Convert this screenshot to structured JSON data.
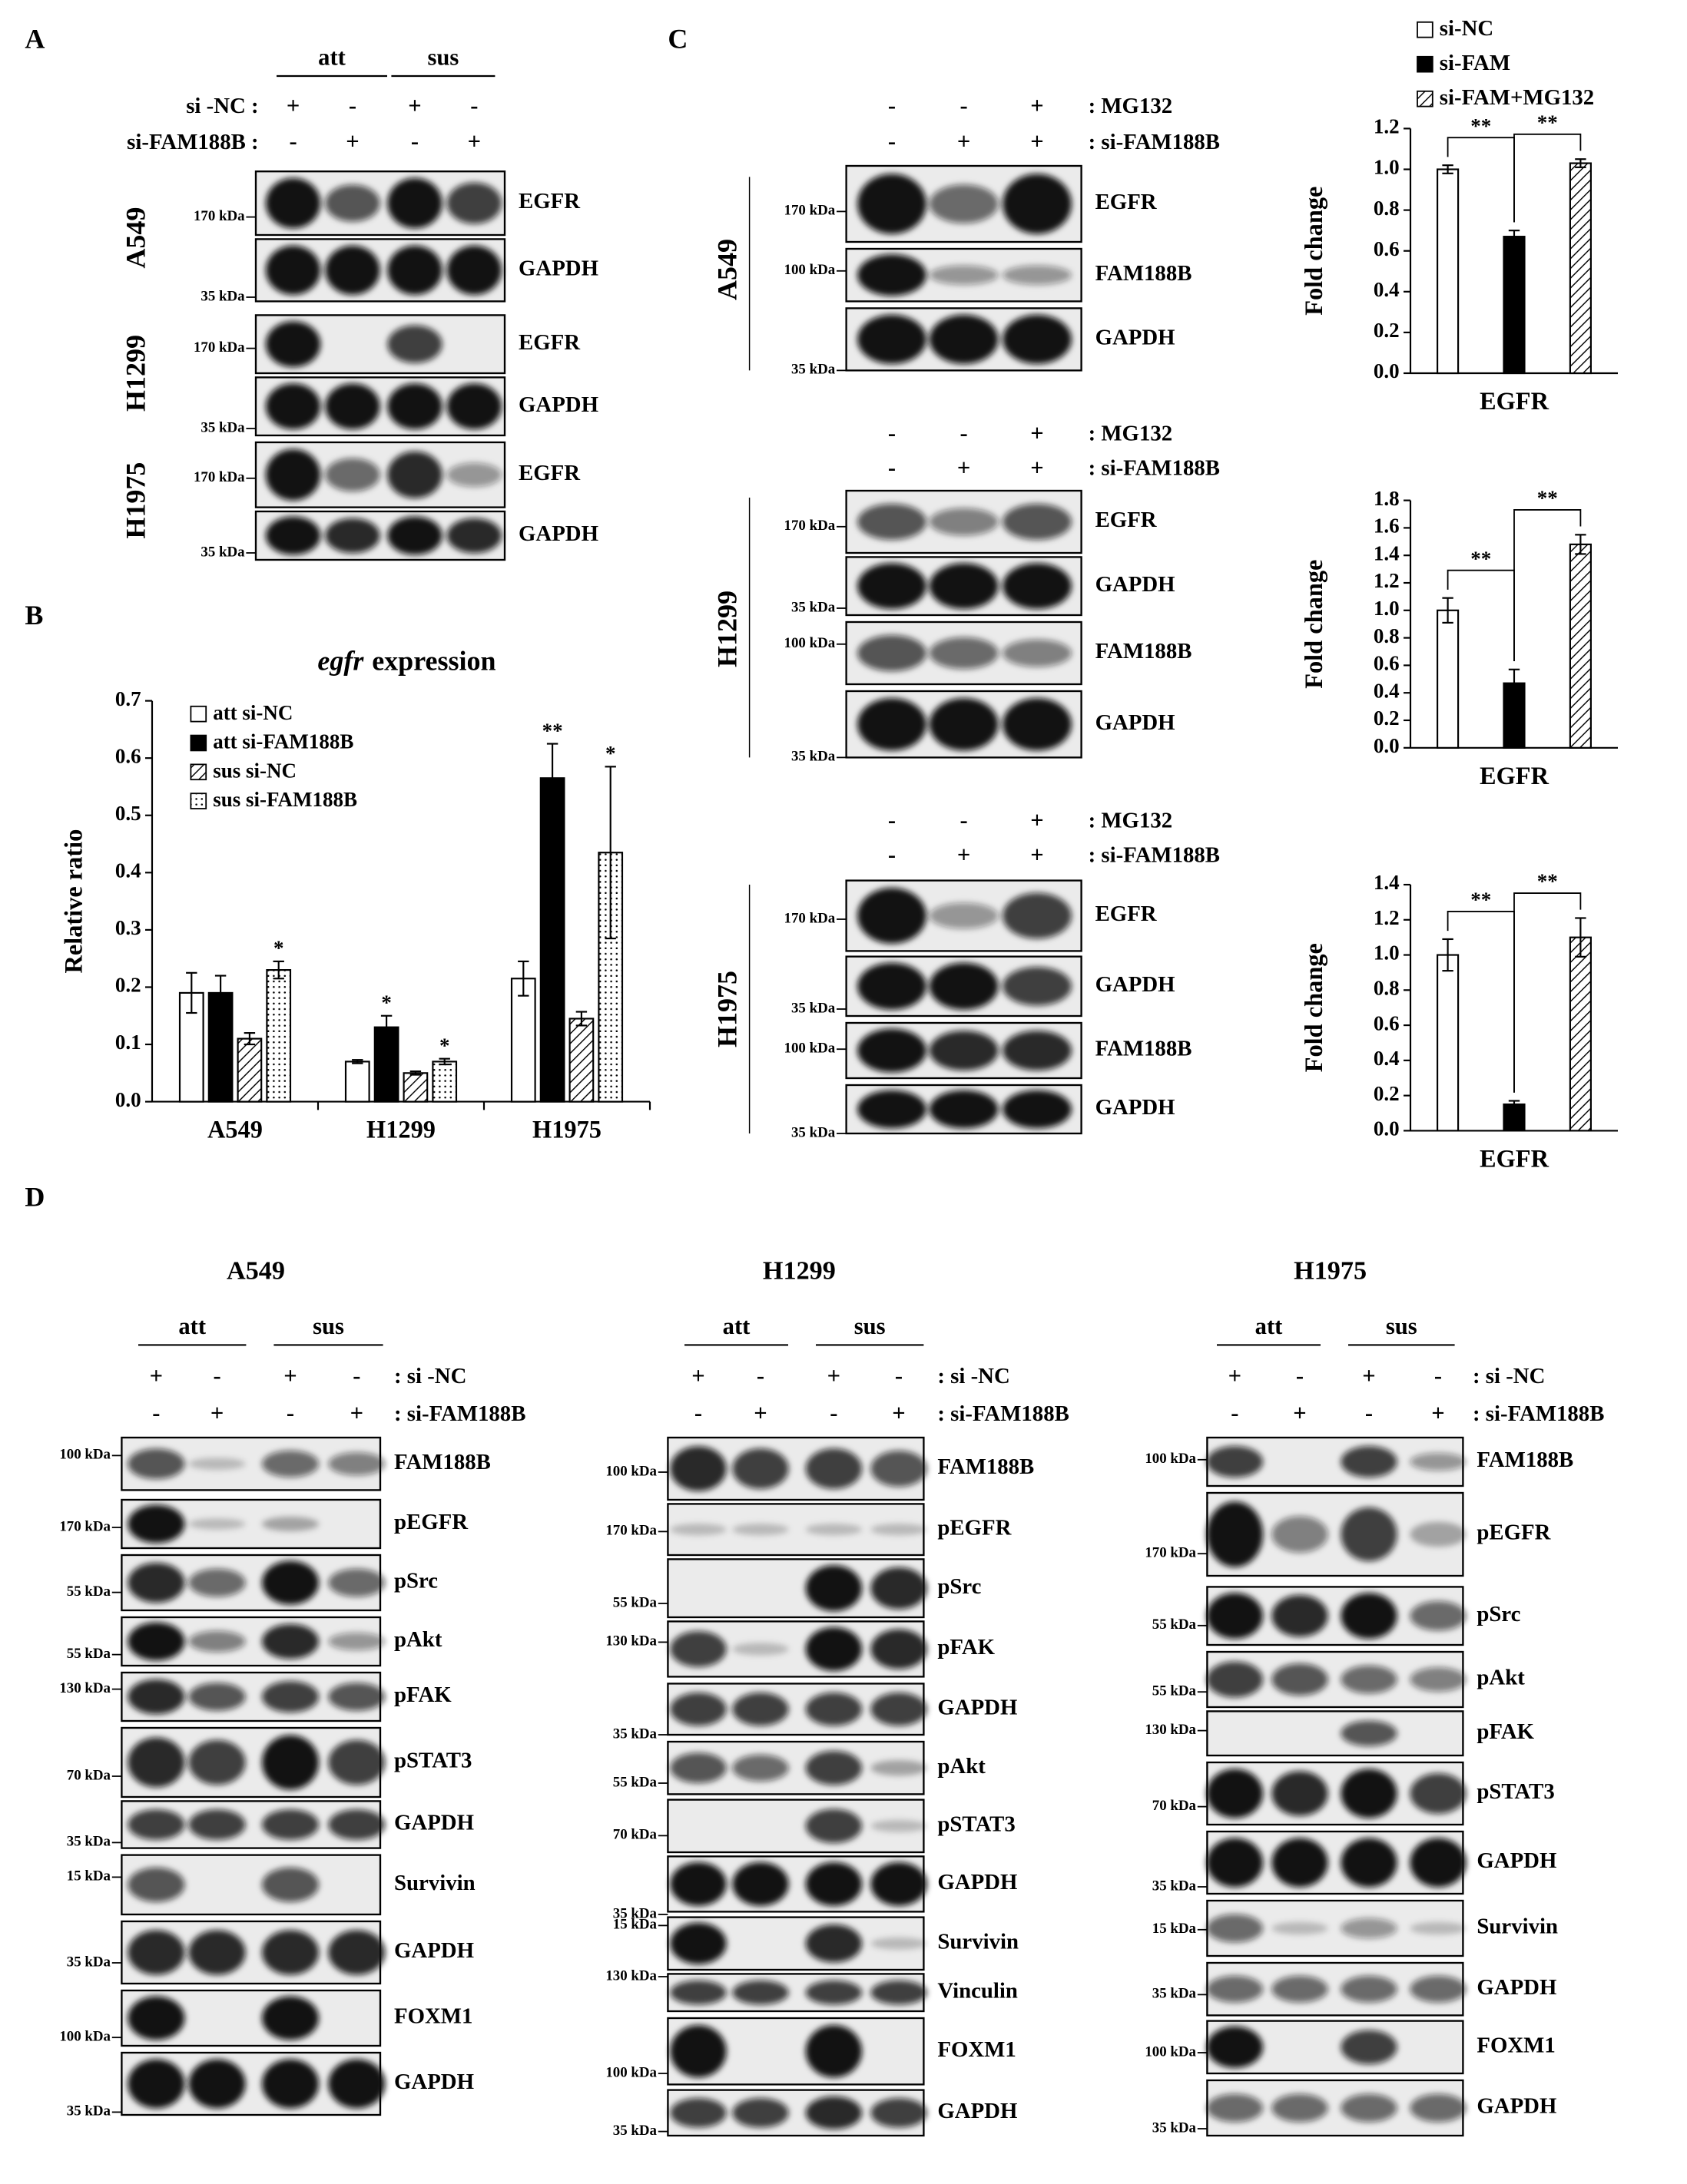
{
  "panel_labels": [
    "A",
    "B",
    "C",
    "D"
  ],
  "panel_a": {
    "groups": [
      "att",
      "sus"
    ],
    "conditions": [
      {
        "label": "si -NC :",
        "signs": [
          "+",
          "-",
          "+",
          "-"
        ]
      },
      {
        "label": "si-FAM188B :",
        "signs": [
          "-",
          "+",
          "-",
          "+"
        ]
      }
    ],
    "cell_lines": [
      "A549",
      "H1299",
      "H1975"
    ],
    "rows": [
      "EGFR",
      "GAPDH",
      "EGFR",
      "GAPDH",
      "EGFR",
      "GAPDH"
    ],
    "markers": [
      "170 kDa",
      "35 kDa",
      "170 kDa",
      "35 kDa",
      "170 kDa",
      "35 kDa"
    ]
  },
  "panel_c": [
    {
      "cell_line": "A549",
      "conditions": [
        {
          "label": ": MG132",
          "signs": [
            "-",
            "-",
            "+"
          ]
        },
        {
          "label": ": si-FAM188B",
          "signs": [
            "-",
            "+",
            "+"
          ]
        }
      ],
      "rows": [
        "EGFR",
        "FAM188B",
        "GAPDH"
      ],
      "markers": [
        "170 kDa",
        "100 kDa",
        "35 kDa"
      ]
    },
    {
      "cell_line": "H1299",
      "conditions": [
        {
          "label": ": MG132",
          "signs": [
            "-",
            "-",
            "+"
          ]
        },
        {
          "label": ": si-FAM188B",
          "signs": [
            "-",
            "+",
            "+"
          ]
        }
      ],
      "rows": [
        "EGFR",
        "GAPDH",
        "FAM188B",
        "GAPDH"
      ],
      "markers": [
        "170 kDa",
        "35 kDa",
        "100 kDa",
        "35 kDa"
      ]
    },
    {
      "cell_line": "H1975",
      "conditions": [
        {
          "label": ": MG132",
          "signs": [
            "-",
            "-",
            "+"
          ]
        },
        {
          "label": ": si-FAM188B",
          "signs": [
            "-",
            "+",
            "+"
          ]
        }
      ],
      "rows": [
        "EGFR",
        "GAPDH",
        "FAM188B",
        "GAPDH"
      ],
      "markers": [
        "170 kDa",
        "35 kDa",
        "100 kDa",
        "35 kDa"
      ]
    }
  ],
  "panel_d": [
    {
      "cell_line": "A549",
      "groups": [
        "att",
        "sus"
      ],
      "conditions": [
        {
          "label": ": si -NC",
          "signs": [
            "+",
            "-",
            "+",
            "-"
          ]
        },
        {
          "label": ": si-FAM188B",
          "signs": [
            "-",
            "+",
            "-",
            "+"
          ]
        }
      ],
      "rows": [
        "FAM188B",
        "pEGFR",
        "pSrc",
        "pAkt",
        "pFAK",
        "pSTAT3",
        "GAPDH",
        "Survivin",
        "GAPDH",
        "FOXM1",
        "GAPDH"
      ],
      "markers": [
        "100 kDa",
        "170 kDa",
        "55 kDa",
        "55 kDa",
        "130 kDa",
        "70 kDa",
        "35 kDa",
        "15 kDa",
        "35 kDa",
        "100 kDa",
        "35 kDa"
      ]
    },
    {
      "cell_line": "H1299",
      "groups": [
        "att",
        "sus"
      ],
      "conditions": [
        {
          "label": ": si -NC",
          "signs": [
            "+",
            "-",
            "+",
            "-"
          ]
        },
        {
          "label": ": si-FAM188B",
          "signs": [
            "-",
            "+",
            "-",
            "+"
          ]
        }
      ],
      "rows": [
        "FAM188B",
        "pEGFR",
        "pSrc",
        "pFAK",
        "GAPDH",
        "pAkt",
        "pSTAT3",
        "GAPDH",
        "Survivin",
        "Vinculin",
        "FOXM1",
        "GAPDH"
      ],
      "markers": [
        "100 kDa",
        "170 kDa",
        "55 kDa",
        "130 kDa",
        "35 kDa",
        "55 kDa",
        "70 kDa",
        "35 kDa",
        "15 kDa",
        "130 kDa",
        "100 kDa",
        "35 kDa"
      ]
    },
    {
      "cell_line": "H1975",
      "groups": [
        "att",
        "sus"
      ],
      "conditions": [
        {
          "label": ": si -NC",
          "signs": [
            "+",
            "-",
            "+",
            "-"
          ]
        },
        {
          "label": ": si-FAM188B",
          "signs": [
            "-",
            "+",
            "-",
            "+"
          ]
        }
      ],
      "rows": [
        "FAM188B",
        "pEGFR",
        "pSrc",
        "pAkt",
        "pFAK",
        "pSTAT3",
        "GAPDH",
        "Survivin",
        "GAPDH",
        "FOXM1",
        "GAPDH"
      ],
      "markers": [
        "100 kDa",
        "170 kDa",
        "55 kDa",
        "55 kDa",
        "130 kDa",
        "70 kDa",
        "35 kDa",
        "15 kDa",
        "35 kDa",
        "100 kDa",
        "35 kDa"
      ]
    }
  ],
  "chart_data": [
    {
      "type": "bar",
      "title_gene": "egfr",
      "title": "expression",
      "y_label": "Relative ratio",
      "categories": [
        "A549",
        "H1299",
        "H1975"
      ],
      "ylim": [
        0,
        0.7
      ],
      "yticks": [
        {
          "value": 0,
          "label": "0.0"
        },
        0.1,
        0.2,
        0.3,
        0.4,
        0.5,
        0.6,
        0.7
      ],
      "series": [
        {
          "name": "att si-NC",
          "color": "#ffffff",
          "values": [
            0.19,
            0.07,
            0.215
          ],
          "errors": [
            0.035,
            0.003,
            0.03
          ],
          "annotations": [
            null,
            null,
            null
          ]
        },
        {
          "name": "att si-FAM188B",
          "color": "#000000",
          "values": [
            0.19,
            0.13,
            0.565
          ],
          "errors": [
            0.03,
            0.02,
            0.06
          ],
          "annotations": [
            null,
            "*",
            "**"
          ]
        },
        {
          "name": "sus si-NC",
          "pattern": "hatch",
          "values": [
            0.11,
            0.05,
            0.145
          ],
          "errors": [
            0.01,
            0.003,
            0.012
          ],
          "annotations": [
            null,
            null,
            null
          ]
        },
        {
          "name": "sus si-FAM188B",
          "pattern": "dots",
          "values": [
            0.23,
            0.07,
            0.435
          ],
          "errors": [
            0.015,
            0.005,
            0.15
          ],
          "annotations": [
            "*",
            "*",
            "*"
          ]
        }
      ]
    },
    {
      "type": "bar",
      "y_label": "Fold change",
      "categories": [
        "EGFR"
      ],
      "ylim": [
        0,
        1.2
      ],
      "yticks": [
        {
          "value": 0,
          "label": "0.0"
        },
        0.2,
        0.4,
        0.6,
        0.8,
        {
          "value": 1,
          "label": "1.0"
        },
        1.2
      ],
      "series": [
        {
          "name": "si-NC",
          "color": "#ffffff",
          "values": [
            1.0
          ],
          "errors": [
            0.02
          ]
        },
        {
          "name": "si-FAM",
          "color": "#000000",
          "values": [
            0.67
          ],
          "errors": [
            0.03
          ]
        },
        {
          "name": "si-FAM+MG132",
          "pattern": "hatch",
          "values": [
            1.03
          ],
          "errors": [
            0.02
          ]
        }
      ],
      "annotations": [
        "**",
        "**"
      ]
    },
    {
      "type": "bar",
      "y_label": "Fold change",
      "categories": [
        "EGFR"
      ],
      "ylim": [
        0,
        1.8
      ],
      "yticks": [
        {
          "value": 0,
          "label": "0.0"
        },
        0.2,
        0.4,
        0.6,
        0.8,
        {
          "value": 1,
          "label": "1.0"
        },
        1.2,
        1.4,
        1.6,
        1.8
      ],
      "series": [
        {
          "color": "#ffffff",
          "values": [
            1.0
          ],
          "errors": [
            0.09
          ]
        },
        {
          "color": "#000000",
          "values": [
            0.47
          ],
          "errors": [
            0.1
          ]
        },
        {
          "pattern": "hatch",
          "values": [
            1.48
          ],
          "errors": [
            0.07
          ]
        }
      ],
      "annotations": [
        "**",
        "**"
      ]
    },
    {
      "type": "bar",
      "y_label": "Fold change",
      "categories": [
        "EGFR"
      ],
      "ylim": [
        0,
        1.4
      ],
      "yticks": [
        {
          "value": 0,
          "label": "0.0"
        },
        0.2,
        0.4,
        0.6,
        0.8,
        {
          "value": 1,
          "label": "1.0"
        },
        1.2,
        1.4
      ],
      "series": [
        {
          "color": "#ffffff",
          "values": [
            1.0
          ],
          "errors": [
            0.09
          ]
        },
        {
          "color": "#000000",
          "values": [
            0.15
          ],
          "errors": [
            0.02
          ]
        },
        {
          "pattern": "hatch",
          "values": [
            1.1
          ],
          "errors": [
            0.11
          ]
        }
      ],
      "annotations": [
        "**",
        "**"
      ]
    }
  ]
}
